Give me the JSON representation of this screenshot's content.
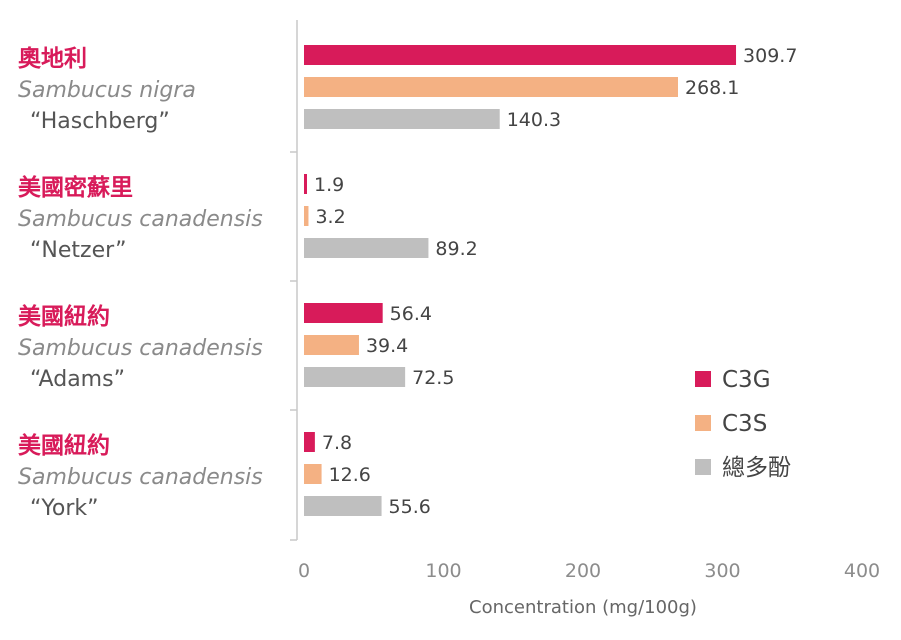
{
  "chart_data": {
    "type": "bar",
    "orientation": "horizontal",
    "xlabel": "Concentration (mg/100g)",
    "xlim": [
      0,
      400
    ],
    "xticks": [
      0,
      100,
      200,
      300,
      400
    ],
    "grid": false,
    "legend_position": "bottom-right",
    "categories": [
      {
        "region": "奧地利",
        "species": "Sambucus nigra",
        "cultivar": "“Haschberg”"
      },
      {
        "region": "美國密蘇里",
        "species": "Sambucus canadensis",
        "cultivar": "“Netzer”"
      },
      {
        "region": "美國紐約",
        "species": "Sambucus canadensis",
        "cultivar": "“Adams”"
      },
      {
        "region": "美國紐約",
        "species": "Sambucus canadensis",
        "cultivar": "“York”"
      }
    ],
    "series": [
      {
        "name": "C3G",
        "color": "#d81b5a",
        "values": [
          309.7,
          1.9,
          56.4,
          7.8
        ],
        "labels": [
          "309.7",
          "1.9",
          "56.4",
          "7.8"
        ]
      },
      {
        "name": "C3S",
        "color": "#f4b183",
        "values": [
          268.1,
          3.2,
          39.4,
          12.6
        ],
        "labels": [
          "268.1",
          "3.2",
          "39.4",
          "12.6"
        ]
      },
      {
        "name": "總多酚",
        "color": "#bfbfbf",
        "values": [
          140.3,
          89.2,
          72.5,
          55.6
        ],
        "labels": [
          "140.3",
          "89.2",
          "72.5",
          "55.6"
        ]
      }
    ]
  }
}
